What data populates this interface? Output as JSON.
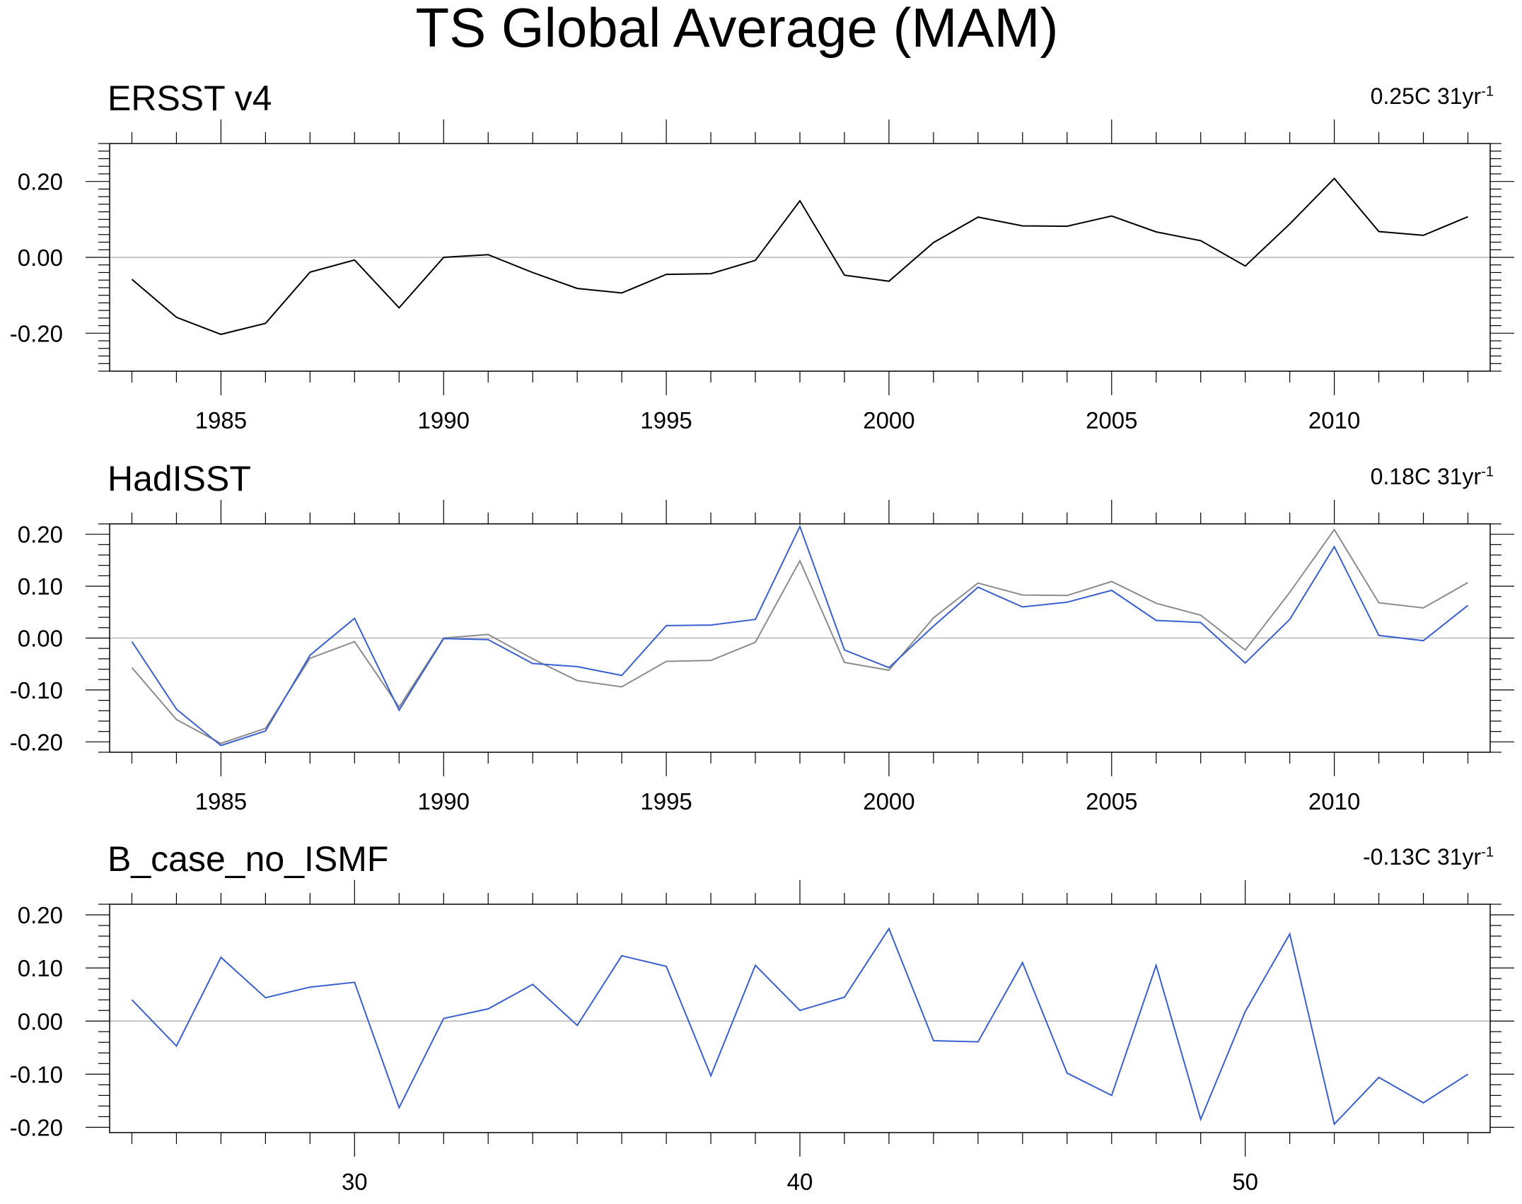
{
  "figure": {
    "title": "TS Global Average (MAM)"
  },
  "chart_data": [
    {
      "type": "line",
      "title": "ERSST v4",
      "trend_label": "0.25C 31yr",
      "trend_superscript": "-1",
      "x": [
        1983,
        1984,
        1985,
        1986,
        1987,
        1988,
        1989,
        1990,
        1991,
        1992,
        1993,
        1994,
        1995,
        1996,
        1997,
        1998,
        1999,
        2000,
        2001,
        2002,
        2003,
        2004,
        2005,
        2006,
        2007,
        2008,
        2009,
        2010,
        2011,
        2012,
        2013
      ],
      "xlim": [
        1982.5,
        2013.5
      ],
      "xticks": [
        1985,
        1990,
        1995,
        2000,
        2005,
        2010
      ],
      "xtick_labels": [
        "1985",
        "1990",
        "1995",
        "2000",
        "2005",
        "2010"
      ],
      "ylim": [
        -0.3,
        0.3
      ],
      "yticks": [
        -0.2,
        0.0,
        0.2
      ],
      "ytick_labels": [
        "-0.20",
        "0.00",
        "0.20"
      ],
      "zero_line": true,
      "series": [
        {
          "name": "ERSST v4",
          "color": "#000000",
          "values": [
            -0.058,
            -0.158,
            -0.203,
            -0.174,
            -0.039,
            -0.007,
            -0.133,
            0.0,
            0.007,
            -0.04,
            -0.082,
            -0.094,
            -0.045,
            -0.043,
            -0.008,
            0.149,
            -0.047,
            -0.063,
            0.039,
            0.106,
            0.083,
            0.082,
            0.109,
            0.067,
            0.044,
            -0.023,
            0.088,
            0.208,
            0.068,
            0.058,
            0.107
          ]
        }
      ]
    },
    {
      "type": "line",
      "title": "HadISST",
      "trend_label": "0.18C 31yr",
      "trend_superscript": "-1",
      "x": [
        1983,
        1984,
        1985,
        1986,
        1987,
        1988,
        1989,
        1990,
        1991,
        1992,
        1993,
        1994,
        1995,
        1996,
        1997,
        1998,
        1999,
        2000,
        2001,
        2002,
        2003,
        2004,
        2005,
        2006,
        2007,
        2008,
        2009,
        2010,
        2011,
        2012,
        2013
      ],
      "xlim": [
        1982.5,
        2013.5
      ],
      "xticks": [
        1985,
        1990,
        1995,
        2000,
        2005,
        2010
      ],
      "xtick_labels": [
        "1985",
        "1990",
        "1995",
        "2000",
        "2005",
        "2010"
      ],
      "ylim": [
        -0.22,
        0.22
      ],
      "yticks": [
        -0.2,
        -0.1,
        0.0,
        0.1,
        0.2
      ],
      "ytick_labels": [
        "-0.20",
        "-0.10",
        "0.00",
        "0.10",
        "0.20"
      ],
      "zero_line": true,
      "series": [
        {
          "name": "ERSST v4",
          "color": "#8c8c8c",
          "values": [
            -0.057,
            -0.157,
            -0.203,
            -0.174,
            -0.039,
            -0.007,
            -0.133,
            0.0,
            0.007,
            -0.04,
            -0.082,
            -0.094,
            -0.045,
            -0.043,
            -0.008,
            0.149,
            -0.047,
            -0.062,
            0.039,
            0.106,
            0.083,
            0.082,
            0.109,
            0.067,
            0.044,
            -0.023,
            0.088,
            0.209,
            0.068,
            0.058,
            0.107
          ]
        },
        {
          "name": "HadISST",
          "color": "#3a5fd0",
          "values": [
            -0.007,
            -0.137,
            -0.207,
            -0.179,
            -0.033,
            0.038,
            -0.139,
            -0.001,
            -0.003,
            -0.049,
            -0.055,
            -0.072,
            0.024,
            0.025,
            0.036,
            0.215,
            -0.023,
            -0.057,
            0.023,
            0.098,
            0.06,
            0.069,
            0.092,
            0.034,
            0.03,
            -0.048,
            0.036,
            0.176,
            0.005,
            -0.005,
            0.063
          ]
        }
      ]
    },
    {
      "type": "line",
      "title": "B_case_no_ISMF",
      "trend_label": "-0.13C 31yr",
      "trend_superscript": "-1",
      "x": [
        25,
        26,
        27,
        28,
        29,
        30,
        31,
        32,
        33,
        34,
        35,
        36,
        37,
        38,
        39,
        40,
        41,
        42,
        43,
        44,
        45,
        46,
        47,
        48,
        49,
        50,
        51,
        52,
        53,
        54,
        55
      ],
      "xlim": [
        24.5,
        55.5
      ],
      "xticks": [
        30,
        40,
        50
      ],
      "xtick_labels": [
        "30",
        "40",
        "50"
      ],
      "ylim": [
        -0.21,
        0.22
      ],
      "yticks": [
        -0.2,
        -0.1,
        0.0,
        0.1,
        0.2
      ],
      "ytick_labels": [
        "-0.20",
        "-0.10",
        "0.00",
        "0.10",
        "0.20"
      ],
      "zero_line": true,
      "series": [
        {
          "name": "B_case_no_ISMF",
          "color": "#3a5fd0",
          "values": [
            0.04,
            -0.047,
            0.12,
            0.044,
            0.064,
            0.073,
            -0.163,
            0.005,
            0.023,
            0.069,
            -0.008,
            0.123,
            0.103,
            -0.103,
            0.105,
            0.02,
            0.045,
            0.174,
            -0.037,
            -0.039,
            0.11,
            -0.098,
            -0.14,
            0.105,
            -0.185,
            0.018,
            0.164,
            -0.194,
            -0.106,
            -0.154,
            -0.1
          ]
        }
      ]
    }
  ]
}
